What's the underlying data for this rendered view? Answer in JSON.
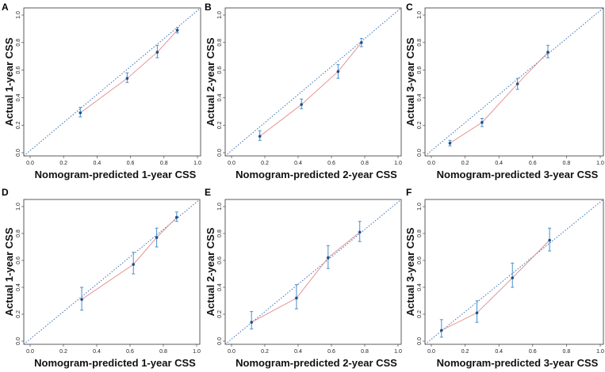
{
  "chart_data": [
    {
      "type": "line",
      "panel": "A",
      "xlabel": "Nomogram-predicted 1-year CSS",
      "ylabel": "Actual 1-year CSS",
      "xlim": [
        0,
        1
      ],
      "ylim": [
        0,
        1
      ],
      "ticks": [
        "0.0",
        "0.2",
        "0.4",
        "0.6",
        "0.8",
        "1.0"
      ],
      "reference_line": "diagonal dotted",
      "series": [
        {
          "name": "calibration",
          "x": [
            0.3,
            0.58,
            0.76,
            0.88
          ],
          "y": [
            0.29,
            0.54,
            0.73,
            0.89
          ],
          "err_low": [
            0.26,
            0.51,
            0.69,
            0.87
          ],
          "err_high": [
            0.33,
            0.58,
            0.78,
            0.91
          ]
        }
      ]
    },
    {
      "type": "line",
      "panel": "B",
      "xlabel": "Nomogram-predicted 2-year CSS",
      "ylabel": "Actual 2-year CSS",
      "xlim": [
        0,
        1
      ],
      "ylim": [
        0,
        1
      ],
      "ticks": [
        "0.0",
        "0.2",
        "0.4",
        "0.6",
        "0.8",
        "1.0"
      ],
      "reference_line": "diagonal dotted",
      "series": [
        {
          "name": "calibration",
          "x": [
            0.17,
            0.42,
            0.64,
            0.78
          ],
          "y": [
            0.12,
            0.35,
            0.59,
            0.8
          ],
          "err_low": [
            0.09,
            0.32,
            0.54,
            0.77
          ],
          "err_high": [
            0.16,
            0.39,
            0.64,
            0.83
          ]
        }
      ]
    },
    {
      "type": "line",
      "panel": "C",
      "xlabel": "Nomogram-predicted 3-year CSS",
      "ylabel": "Actual 3-year CSS",
      "xlim": [
        0,
        1
      ],
      "ylim": [
        0,
        1
      ],
      "ticks": [
        "0.0",
        "0.2",
        "0.4",
        "0.6",
        "0.8",
        "1.0"
      ],
      "reference_line": "diagonal dotted",
      "series": [
        {
          "name": "calibration",
          "x": [
            0.11,
            0.3,
            0.51,
            0.69
          ],
          "y": [
            0.07,
            0.22,
            0.5,
            0.73
          ],
          "err_low": [
            0.05,
            0.19,
            0.46,
            0.69
          ],
          "err_high": [
            0.09,
            0.25,
            0.54,
            0.78
          ]
        }
      ]
    },
    {
      "type": "line",
      "panel": "D",
      "xlabel": "Nomogram-predicted 1-year CSS",
      "ylabel": "Actual 1-year CSS",
      "xlim": [
        0,
        1
      ],
      "ylim": [
        0,
        1
      ],
      "ticks": [
        "0.0",
        "0.2",
        "0.4",
        "0.6",
        "0.8",
        "1.0"
      ],
      "reference_line": "diagonal dotted",
      "series": [
        {
          "name": "calibration",
          "x": [
            0.31,
            0.62,
            0.76,
            0.88
          ],
          "y": [
            0.31,
            0.57,
            0.77,
            0.92
          ],
          "err_low": [
            0.23,
            0.5,
            0.7,
            0.89
          ],
          "err_high": [
            0.4,
            0.66,
            0.84,
            0.96
          ]
        }
      ]
    },
    {
      "type": "line",
      "panel": "E",
      "xlabel": "Nomogram-predicted 2-year CSS",
      "ylabel": "Actual 2-year CSS",
      "xlim": [
        0,
        1
      ],
      "ylim": [
        0,
        1
      ],
      "ticks": [
        "0.0",
        "0.2",
        "0.4",
        "0.6",
        "0.8",
        "1.0"
      ],
      "reference_line": "diagonal dotted",
      "series": [
        {
          "name": "calibration",
          "x": [
            0.12,
            0.39,
            0.58,
            0.77
          ],
          "y": [
            0.14,
            0.32,
            0.62,
            0.81
          ],
          "err_low": [
            0.09,
            0.24,
            0.54,
            0.74
          ],
          "err_high": [
            0.22,
            0.42,
            0.71,
            0.89
          ]
        }
      ]
    },
    {
      "type": "line",
      "panel": "F",
      "xlabel": "Nomogram-predicted 3-year CSS",
      "ylabel": "Actual 3-year CSS",
      "xlim": [
        0,
        1
      ],
      "ylim": [
        0,
        1
      ],
      "ticks": [
        "0.0",
        "0.2",
        "0.4",
        "0.6",
        "0.8",
        "1.0"
      ],
      "reference_line": "diagonal dotted",
      "series": [
        {
          "name": "calibration",
          "x": [
            0.06,
            0.27,
            0.48,
            0.7
          ],
          "y": [
            0.08,
            0.21,
            0.47,
            0.75
          ],
          "err_low": [
            0.03,
            0.14,
            0.4,
            0.67
          ],
          "err_high": [
            0.16,
            0.3,
            0.58,
            0.84
          ]
        }
      ]
    }
  ],
  "colors": {
    "reference": "#3a6fb5",
    "line": "#e58a8a",
    "errorbar": "#4a90c8",
    "point": "#1f4f8a",
    "axis": "#333333"
  }
}
